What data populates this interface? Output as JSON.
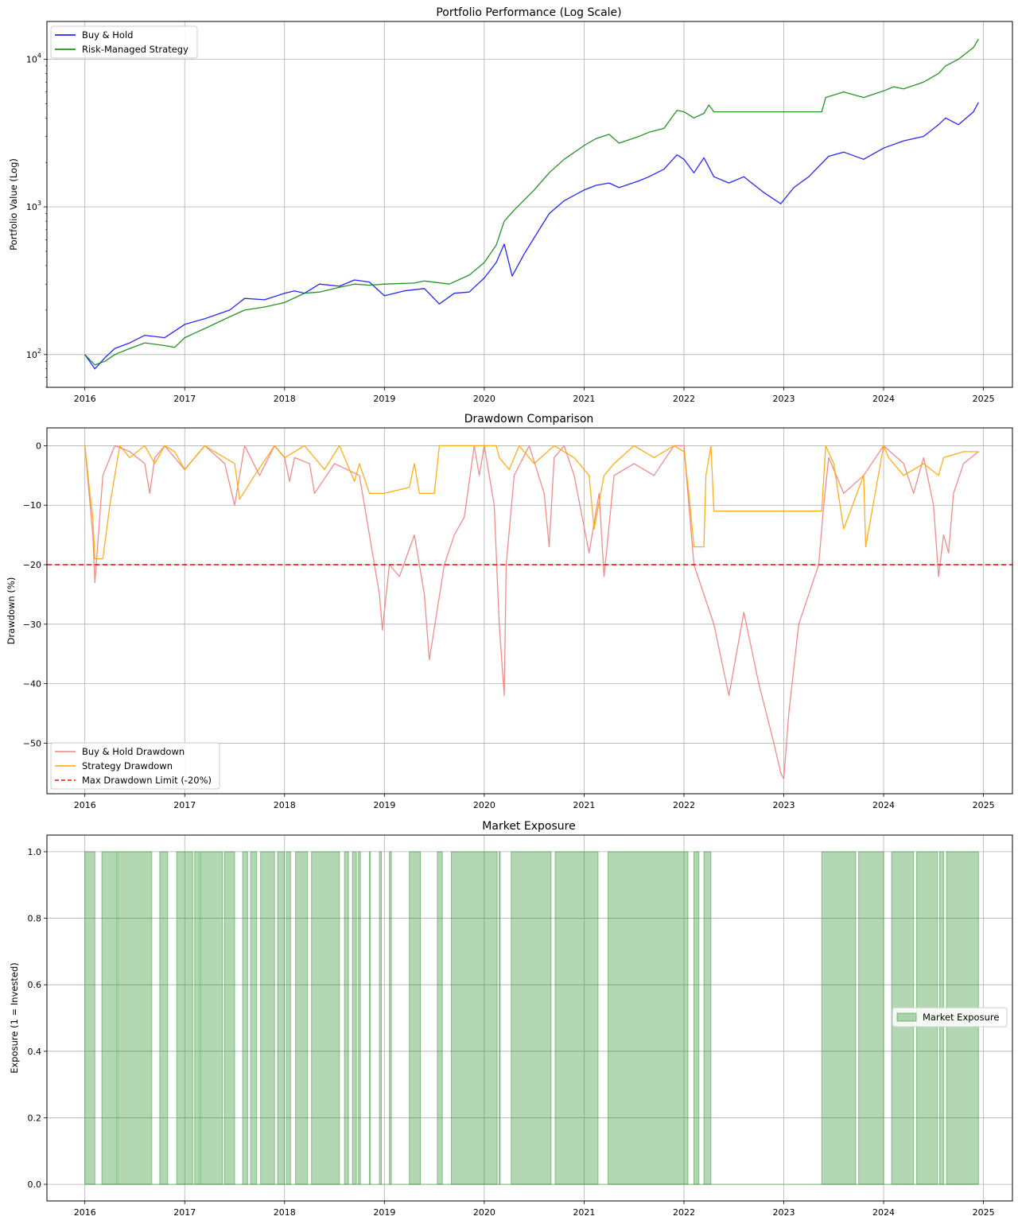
{
  "chart_data": [
    {
      "type": "line",
      "title": "Portfolio Performance (Log Scale)",
      "xlabel": "",
      "ylabel": "Portfolio Value (Log)",
      "y_scale": "log",
      "xlim": [
        2015.62,
        2025.29
      ],
      "ylim": [
        60,
        18000
      ],
      "x_ticks": [
        2016,
        2017,
        2018,
        2019,
        2020,
        2021,
        2022,
        2023,
        2024,
        2025
      ],
      "x_tick_labels": [
        "2016",
        "2017",
        "2018",
        "2019",
        "2020",
        "2021",
        "2022",
        "2023",
        "2024",
        "2025"
      ],
      "y_ticks": [
        100,
        1000,
        10000
      ],
      "y_tick_labels": [
        {
          "base": "10",
          "exp": "2"
        },
        {
          "base": "10",
          "exp": "3"
        },
        {
          "base": "10",
          "exp": "4"
        }
      ],
      "grid": true,
      "legend_position": "top-left",
      "series": [
        {
          "name": "Buy & Hold",
          "color": "#0000ff",
          "x": [
            2016.0,
            2016.1,
            2016.2,
            2016.3,
            2016.45,
            2016.6,
            2016.8,
            2017.0,
            2017.2,
            2017.45,
            2017.6,
            2017.8,
            2018.0,
            2018.1,
            2018.2,
            2018.35,
            2018.55,
            2018.7,
            2018.85,
            2019.0,
            2019.2,
            2019.4,
            2019.55,
            2019.7,
            2019.85,
            2020.0,
            2020.12,
            2020.2,
            2020.28,
            2020.4,
            2020.55,
            2020.65,
            2020.8,
            2021.0,
            2021.12,
            2021.25,
            2021.35,
            2021.55,
            2021.65,
            2021.8,
            2021.93,
            2022.0,
            2022.1,
            2022.2,
            2022.3,
            2022.45,
            2022.6,
            2022.8,
            2022.97,
            2023.1,
            2023.25,
            2023.45,
            2023.6,
            2023.8,
            2024.0,
            2024.2,
            2024.4,
            2024.55,
            2024.62,
            2024.75,
            2024.9,
            2024.95
          ],
          "y": [
            100,
            80,
            95,
            110,
            120,
            135,
            130,
            160,
            175,
            200,
            240,
            235,
            260,
            270,
            260,
            300,
            290,
            320,
            310,
            250,
            270,
            280,
            220,
            260,
            265,
            330,
            420,
            560,
            340,
            480,
            700,
            900,
            1100,
            1300,
            1400,
            1450,
            1350,
            1500,
            1600,
            1800,
            2250,
            2100,
            1700,
            2150,
            1600,
            1450,
            1600,
            1250,
            1050,
            1350,
            1600,
            2200,
            2350,
            2100,
            2500,
            2800,
            3000,
            3600,
            4000,
            3600,
            4400,
            5100
          ]
        },
        {
          "name": "Risk-Managed Strategy",
          "color": "#008000",
          "x": [
            2016.0,
            2016.1,
            2016.2,
            2016.3,
            2016.45,
            2016.6,
            2016.8,
            2016.9,
            2017.0,
            2017.2,
            2017.45,
            2017.6,
            2017.8,
            2018.0,
            2018.2,
            2018.35,
            2018.55,
            2018.7,
            2018.85,
            2019.0,
            2019.3,
            2019.4,
            2019.65,
            2019.85,
            2020.0,
            2020.12,
            2020.2,
            2020.3,
            2020.5,
            2020.65,
            2020.8,
            2021.0,
            2021.12,
            2021.25,
            2021.35,
            2021.55,
            2021.65,
            2021.8,
            2021.93,
            2022.0,
            2022.1,
            2022.2,
            2022.25,
            2022.3,
            2023.38,
            2023.42,
            2023.6,
            2023.8,
            2024.0,
            2024.1,
            2024.2,
            2024.4,
            2024.55,
            2024.62,
            2024.75,
            2024.9,
            2024.95
          ],
          "y": [
            100,
            85,
            90,
            100,
            110,
            120,
            115,
            112,
            130,
            150,
            180,
            200,
            210,
            225,
            260,
            265,
            285,
            300,
            295,
            300,
            305,
            315,
            300,
            345,
            420,
            550,
            800,
            950,
            1300,
            1700,
            2100,
            2600,
            2900,
            3100,
            2700,
            3000,
            3200,
            3400,
            4500,
            4400,
            4000,
            4300,
            4900,
            4400,
            4400,
            5500,
            6000,
            5500,
            6100,
            6500,
            6300,
            7000,
            8000,
            9000,
            10000,
            12000,
            13700
          ]
        }
      ]
    },
    {
      "type": "line",
      "title": "Drawdown Comparison",
      "xlabel": "",
      "ylabel": "Drawdown (%)",
      "xlim": [
        2015.62,
        2025.29
      ],
      "ylim": [
        -58.5,
        3
      ],
      "x_ticks": [
        2016,
        2017,
        2018,
        2019,
        2020,
        2021,
        2022,
        2023,
        2024,
        2025
      ],
      "x_tick_labels": [
        "2016",
        "2017",
        "2018",
        "2019",
        "2020",
        "2021",
        "2022",
        "2023",
        "2024",
        "2025"
      ],
      "y_ticks": [
        0,
        -10,
        -20,
        -30,
        -40,
        -50
      ],
      "y_tick_labels": [
        "0",
        "−10",
        "−20",
        "−30",
        "−40",
        "−50"
      ],
      "grid": true,
      "legend_position": "bottom-left",
      "series": [
        {
          "name": "Buy & Hold Drawdown",
          "color": "#f08080",
          "x": [
            2016.0,
            2016.08,
            2016.1,
            2016.18,
            2016.3,
            2016.45,
            2016.6,
            2016.65,
            2016.7,
            2016.8,
            2017.0,
            2017.2,
            2017.4,
            2017.5,
            2017.6,
            2017.75,
            2017.9,
            2018.0,
            2018.05,
            2018.1,
            2018.25,
            2018.3,
            2018.5,
            2018.75,
            2018.85,
            2018.9,
            2018.95,
            2018.98,
            2019.05,
            2019.15,
            2019.3,
            2019.4,
            2019.45,
            2019.6,
            2019.7,
            2019.8,
            2019.9,
            2019.95,
            2020.0,
            2020.1,
            2020.15,
            2020.2,
            2020.22,
            2020.3,
            2020.45,
            2020.6,
            2020.65,
            2020.7,
            2020.8,
            2020.9,
            2021.05,
            2021.15,
            2021.2,
            2021.3,
            2021.5,
            2021.7,
            2021.9,
            2022.0,
            2022.05,
            2022.1,
            2022.3,
            2022.45,
            2022.6,
            2022.75,
            2022.9,
            2022.97,
            2023.0,
            2023.05,
            2023.15,
            2023.25,
            2023.35,
            2023.4,
            2023.45,
            2023.6,
            2023.8,
            2024.0,
            2024.2,
            2024.3,
            2024.4,
            2024.5,
            2024.55,
            2024.6,
            2024.65,
            2024.7,
            2024.8,
            2024.95
          ],
          "y": [
            0,
            -15,
            -23,
            -5,
            0,
            -1,
            -3,
            -8,
            -2,
            0,
            -4,
            0,
            -3,
            -10,
            0,
            -5,
            0,
            -2,
            -6,
            -2,
            -3,
            -8,
            -3,
            -5,
            -15,
            -20,
            -25,
            -31,
            -20,
            -22,
            -15,
            -25,
            -36,
            -20,
            -15,
            -12,
            0,
            -5,
            0,
            -10,
            -30,
            -42,
            -20,
            -5,
            0,
            -8,
            -17,
            -2,
            0,
            -5,
            -18,
            -8,
            -22,
            -5,
            -3,
            -5,
            0,
            0,
            -10,
            -20,
            -30,
            -42,
            -28,
            -40,
            -50,
            -55,
            -56,
            -45,
            -30,
            -25,
            -20,
            -10,
            -2,
            -8,
            -5,
            0,
            -3,
            -8,
            -2,
            -10,
            -22,
            -15,
            -18,
            -8,
            -3,
            -1
          ]
        },
        {
          "name": "Strategy Drawdown",
          "color": "#ffa500",
          "x": [
            2016.0,
            2016.05,
            2016.08,
            2016.1,
            2016.18,
            2016.25,
            2016.35,
            2016.45,
            2016.6,
            2016.7,
            2016.8,
            2016.9,
            2017.0,
            2017.2,
            2017.5,
            2017.55,
            2017.7,
            2017.9,
            2018.0,
            2018.2,
            2018.4,
            2018.55,
            2018.7,
            2018.75,
            2018.85,
            2018.9,
            2019.0,
            2019.25,
            2019.3,
            2019.35,
            2019.5,
            2019.55,
            2019.65,
            2019.7,
            2019.8,
            2020.0,
            2020.12,
            2020.15,
            2020.25,
            2020.35,
            2020.5,
            2020.7,
            2020.9,
            2021.05,
            2021.1,
            2021.2,
            2021.3,
            2021.5,
            2021.7,
            2021.9,
            2022.0,
            2022.05,
            2022.1,
            2022.2,
            2022.22,
            2022.27,
            2022.3,
            2023.38,
            2023.42,
            2023.5,
            2023.6,
            2023.8,
            2023.82,
            2024.0,
            2024.05,
            2024.2,
            2024.4,
            2024.55,
            2024.6,
            2024.8,
            2024.95
          ],
          "y": [
            0,
            -8,
            -12,
            -19,
            -19,
            -10,
            0,
            -2,
            0,
            -3,
            0,
            -1,
            -4,
            0,
            -3,
            -9,
            -5,
            0,
            -2,
            0,
            -4,
            0,
            -6,
            -3,
            -8,
            -8,
            -8,
            -7,
            -3,
            -8,
            -8,
            0,
            0,
            0,
            0,
            0,
            0,
            -2,
            -4,
            0,
            -3,
            0,
            -2,
            -5,
            -14,
            -5,
            -3,
            0,
            -2,
            0,
            -1,
            -8,
            -17,
            -17,
            -5,
            0,
            -11,
            -11,
            0,
            -3,
            -14,
            -5,
            -17,
            0,
            -2,
            -5,
            -3,
            -5,
            -2,
            -1,
            -1
          ]
        },
        {
          "name": "Max Drawdown Limit (-20%)",
          "color": "#ff0000",
          "dashed": true,
          "x": [
            2015.62,
            2025.29
          ],
          "y": [
            -20,
            -20
          ]
        }
      ]
    },
    {
      "type": "area",
      "title": "Market Exposure",
      "xlabel": "",
      "ylabel": "Exposure (1 = Invested)",
      "xlim": [
        2015.62,
        2025.29
      ],
      "ylim": [
        -0.05,
        1.05
      ],
      "x_ticks": [
        2016,
        2017,
        2018,
        2019,
        2020,
        2021,
        2022,
        2023,
        2024,
        2025
      ],
      "x_tick_labels": [
        "2016",
        "2017",
        "2018",
        "2019",
        "2020",
        "2021",
        "2022",
        "2023",
        "2024",
        "2025"
      ],
      "y_ticks": [
        0.0,
        0.2,
        0.4,
        0.6,
        0.8,
        1.0
      ],
      "y_tick_labels": [
        "0.0",
        "0.2",
        "0.4",
        "0.6",
        "0.8",
        "1.0"
      ],
      "grid": true,
      "legend_position": "center-right",
      "series": [
        {
          "name": "Market Exposure",
          "color": "#228b22",
          "invested_periods": [
            [
              2016.0,
              2016.1
            ],
            [
              2016.17,
              2016.32
            ],
            [
              2016.33,
              2016.67
            ],
            [
              2016.75,
              2016.83
            ],
            [
              2016.92,
              2017.08
            ],
            [
              2017.1,
              2017.15
            ],
            [
              2017.16,
              2017.38
            ],
            [
              2017.4,
              2017.5
            ],
            [
              2017.58,
              2017.63
            ],
            [
              2017.66,
              2017.72
            ],
            [
              2017.76,
              2017.9
            ],
            [
              2017.93,
              2018.0
            ],
            [
              2018.02,
              2018.06
            ],
            [
              2018.11,
              2018.23
            ],
            [
              2018.27,
              2018.55
            ],
            [
              2018.6,
              2018.64
            ],
            [
              2018.68,
              2018.72
            ],
            [
              2018.74,
              2018.76
            ],
            [
              2018.85,
              2018.86
            ],
            [
              2018.95,
              2018.97
            ],
            [
              2019.05,
              2019.07
            ],
            [
              2019.25,
              2019.36
            ],
            [
              2019.53,
              2019.58
            ],
            [
              2019.67,
              2020.13
            ],
            [
              2020.15,
              2020.16
            ],
            [
              2020.27,
              2020.67
            ],
            [
              2020.71,
              2021.14
            ],
            [
              2021.24,
              2022.04
            ],
            [
              2022.1,
              2022.15
            ],
            [
              2022.2,
              2022.27
            ],
            [
              2023.38,
              2023.72
            ],
            [
              2023.75,
              2024.0
            ],
            [
              2024.08,
              2024.3
            ],
            [
              2024.33,
              2024.54
            ],
            [
              2024.56,
              2024.6
            ],
            [
              2024.63,
              2024.95
            ]
          ]
        }
      ]
    }
  ]
}
